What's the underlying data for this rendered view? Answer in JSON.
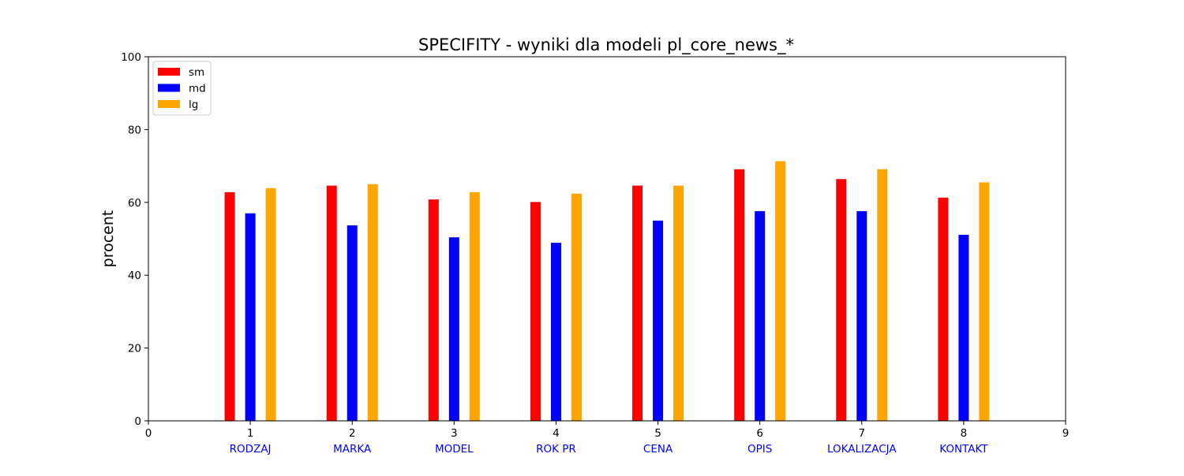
{
  "chart_data": {
    "type": "bar",
    "title": "SPECIFITY - wyniki dla modeli pl_core_news_*",
    "xlabel": "",
    "ylabel": "procent",
    "xlim": [
      0,
      9
    ],
    "ylim": [
      0,
      100
    ],
    "x_ticks": [
      "0",
      "1",
      "2",
      "3",
      "4",
      "5",
      "6",
      "7",
      "8",
      "9"
    ],
    "y_ticks": [
      "0",
      "20",
      "40",
      "60",
      "80",
      "100"
    ],
    "x": [
      1,
      2,
      3,
      4,
      5,
      6,
      7,
      8
    ],
    "categories": [
      "RODZAJ",
      "MARKA",
      "MODEL",
      "ROK PR",
      "CENA",
      "OPIS",
      "LOKALIZACJA",
      "KONTAKT"
    ],
    "category_label_color": "#0000ff",
    "series": [
      {
        "name": "sm",
        "color": "#ff0000",
        "values": [
          62.8,
          64.6,
          60.8,
          60.1,
          64.6,
          69.1,
          66.4,
          61.3
        ]
      },
      {
        "name": "md",
        "color": "#0000ff",
        "values": [
          57.0,
          53.7,
          50.4,
          48.9,
          55.0,
          57.6,
          57.6,
          51.1
        ]
      },
      {
        "name": "lg",
        "color": "#ffa500",
        "values": [
          63.9,
          65.0,
          62.8,
          62.4,
          64.6,
          71.3,
          69.1,
          65.5
        ]
      }
    ],
    "grid": false,
    "legend_position": "top-left"
  }
}
